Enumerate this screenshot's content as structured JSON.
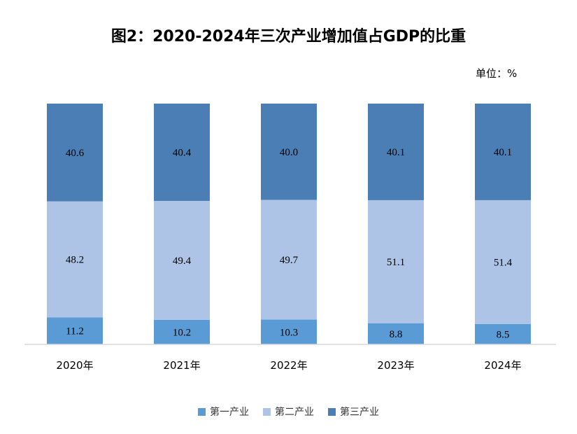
{
  "chart_data": {
    "type": "bar",
    "stacked": true,
    "title": "图2：2020-2024年三次产业增加值占GDP的比重",
    "unit_label": "单位：%",
    "categories": [
      "2020年",
      "2021年",
      "2022年",
      "2023年",
      "2024年"
    ],
    "series": [
      {
        "name": "第一产业",
        "color": "#5b9bd5",
        "values": [
          11.2,
          10.2,
          10.3,
          8.8,
          8.5
        ]
      },
      {
        "name": "第二产业",
        "color": "#adc4e6",
        "values": [
          48.2,
          49.4,
          49.7,
          51.1,
          51.4
        ]
      },
      {
        "name": "第三产业",
        "color": "#4a7eb4",
        "values": [
          40.6,
          40.4,
          40.0,
          40.1,
          40.1
        ]
      }
    ],
    "ylim": [
      0,
      100
    ],
    "xlabel": "",
    "ylabel": "",
    "grid": false,
    "legend_position": "bottom"
  }
}
